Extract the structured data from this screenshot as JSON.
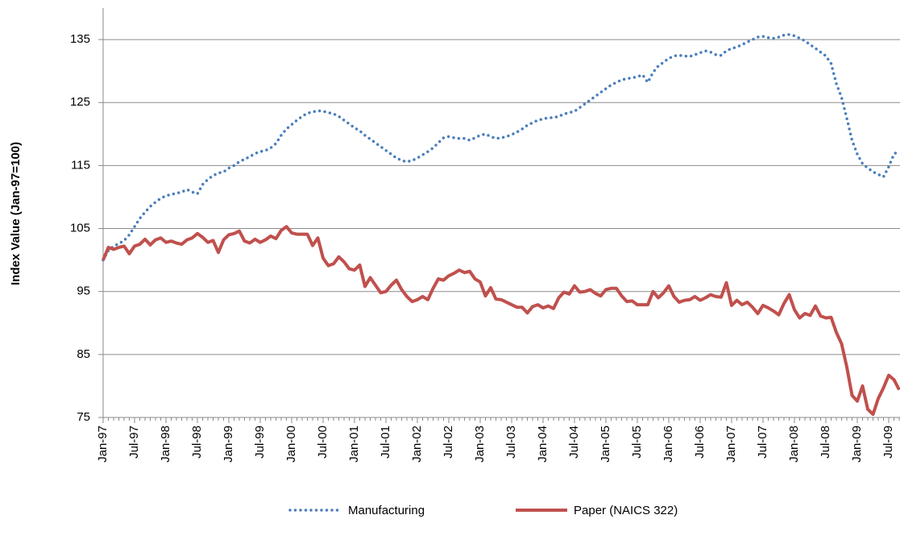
{
  "chart_data": {
    "type": "line",
    "y_label": "Index Value (Jan-97=100)",
    "categories": [
      "Jan-97",
      null,
      null,
      null,
      null,
      null,
      "Jul-97",
      null,
      null,
      null,
      null,
      null,
      "Jan-98",
      null,
      null,
      null,
      null,
      null,
      "Jul-98",
      null,
      null,
      null,
      null,
      null,
      "Jan-99",
      null,
      null,
      null,
      null,
      null,
      "Jul-99",
      null,
      null,
      null,
      null,
      null,
      "Jan-00",
      null,
      null,
      null,
      null,
      null,
      "Jul-00",
      null,
      null,
      null,
      null,
      null,
      "Jan-01",
      null,
      null,
      null,
      null,
      null,
      "Jul-01",
      null,
      null,
      null,
      null,
      null,
      "Jan-02",
      null,
      null,
      null,
      null,
      null,
      "Jul-02",
      null,
      null,
      null,
      null,
      null,
      "Jan-03",
      null,
      null,
      null,
      null,
      null,
      "Jul-03",
      null,
      null,
      null,
      null,
      null,
      "Jan-04",
      null,
      null,
      null,
      null,
      null,
      "Jul-04",
      null,
      null,
      null,
      null,
      null,
      "Jan-05",
      null,
      null,
      null,
      null,
      null,
      "Jul-05",
      null,
      null,
      null,
      null,
      null,
      "Jan-06",
      null,
      null,
      null,
      null,
      null,
      "Jul-06",
      null,
      null,
      null,
      null,
      null,
      "Jan-07",
      null,
      null,
      null,
      null,
      null,
      "Jul-07",
      null,
      null,
      null,
      null,
      null,
      "Jan-08",
      null,
      null,
      null,
      null,
      null,
      "Jul-08",
      null,
      null,
      null,
      null,
      null,
      "Jan-09",
      null,
      null,
      null,
      null,
      null,
      "Jul-09",
      null,
      null
    ],
    "series": [
      {
        "name": "Manufacturing",
        "color": "#4a7ebb",
        "style": "dotted",
        "values": [
          100,
          101.5,
          102.2,
          102.6,
          103.1,
          104,
          105.3,
          106.6,
          107.6,
          108.5,
          109.2,
          109.8,
          110.2,
          110.4,
          110.6,
          110.8,
          111.2,
          110.8,
          110.5,
          112,
          112.8,
          113.4,
          113.8,
          114,
          114.6,
          115,
          115.6,
          116,
          116.4,
          116.9,
          117.2,
          117.4,
          117.8,
          118.5,
          119.8,
          120.8,
          121.5,
          122.2,
          122.8,
          123.3,
          123.5,
          123.7,
          123.6,
          123.4,
          123.2,
          122.8,
          122.2,
          121.6,
          121,
          120.5,
          119.8,
          119.2,
          118.6,
          118,
          117.4,
          116.8,
          116.2,
          115.8,
          115.6,
          115.8,
          116.2,
          116.7,
          117.2,
          117.8,
          118.6,
          119.4,
          119.6,
          119.4,
          119.3,
          119.3,
          119,
          119.4,
          119.8,
          120,
          119.6,
          119.3,
          119.4,
          119.6,
          119.9,
          120.3,
          120.8,
          121.4,
          121.8,
          122.2,
          122.4,
          122.6,
          122.6,
          122.8,
          123.2,
          123.4,
          123.6,
          124.2,
          124.8,
          125.4,
          126,
          126.6,
          127.2,
          127.8,
          128.2,
          128.6,
          128.8,
          128.9,
          129.1,
          129.4,
          128.2,
          129.8,
          130.8,
          131.4,
          132,
          132.4,
          132.5,
          132.4,
          132.3,
          132.6,
          132.9,
          133.2,
          133,
          132.6,
          132.5,
          133.2,
          133.6,
          133.8,
          134.2,
          134.6,
          135,
          135.4,
          135.5,
          135.3,
          135.2,
          135.4,
          135.7,
          135.8,
          135.6,
          135.2,
          134.8,
          134.2,
          133.6,
          133,
          132.4,
          131.2,
          128,
          125.8,
          122.5,
          119,
          116.8,
          115.3,
          114.6,
          114,
          113.6,
          113.2,
          114.8,
          116.8,
          117.4
        ]
      },
      {
        "name": "Paper (NAICS 322)",
        "color": "#c0504d",
        "style": "solid",
        "values": [
          100,
          102,
          101.7,
          102,
          102.2,
          101,
          102.2,
          102.5,
          103.3,
          102.4,
          103.2,
          103.5,
          102.8,
          103,
          102.7,
          102.5,
          103.2,
          103.5,
          104.2,
          103.6,
          102.8,
          103.1,
          101.2,
          103.2,
          104,
          104.2,
          104.6,
          103,
          102.7,
          103.3,
          102.8,
          103.2,
          103.8,
          103.4,
          104.7,
          105.3,
          104.3,
          104.1,
          104.1,
          104.1,
          102.3,
          103.5,
          100.3,
          99.1,
          99.4,
          100.5,
          99.7,
          98.6,
          98.4,
          99.2,
          95.8,
          97.2,
          96,
          94.8,
          95,
          96,
          96.8,
          95.3,
          94.2,
          93.4,
          93.7,
          94.2,
          93.7,
          95.5,
          97,
          96.8,
          97.5,
          97.9,
          98.4,
          98,
          98.2,
          97,
          96.5,
          94.3,
          95.6,
          93.8,
          93.7,
          93.3,
          92.9,
          92.5,
          92.5,
          91.6,
          92.6,
          92.9,
          92.4,
          92.7,
          92.3,
          94,
          94.9,
          94.6,
          95.9,
          94.9,
          95,
          95.3,
          94.7,
          94.3,
          95.3,
          95.5,
          95.5,
          94.3,
          93.4,
          93.5,
          92.9,
          92.9,
          92.9,
          95,
          94,
          94.8,
          95.9,
          94.2,
          93.3,
          93.6,
          93.7,
          94.2,
          93.6,
          94,
          94.5,
          94.2,
          94.1,
          96.4,
          92.8,
          93.6,
          92.9,
          93.3,
          92.5,
          91.5,
          92.8,
          92.4,
          91.9,
          91.3,
          93.1,
          94.5,
          92.1,
          90.8,
          91.5,
          91.2,
          92.7,
          91.1,
          90.8,
          90.9,
          88.5,
          86.7,
          83,
          78.5,
          77.6,
          80,
          76.3,
          75.5,
          78,
          79.7,
          81.7,
          81,
          79.4
        ]
      }
    ],
    "ylim": [
      75,
      140
    ],
    "yticks": [
      75,
      85,
      95,
      105,
      115,
      125,
      135
    ],
    "grid": true,
    "legend": "bottom"
  }
}
